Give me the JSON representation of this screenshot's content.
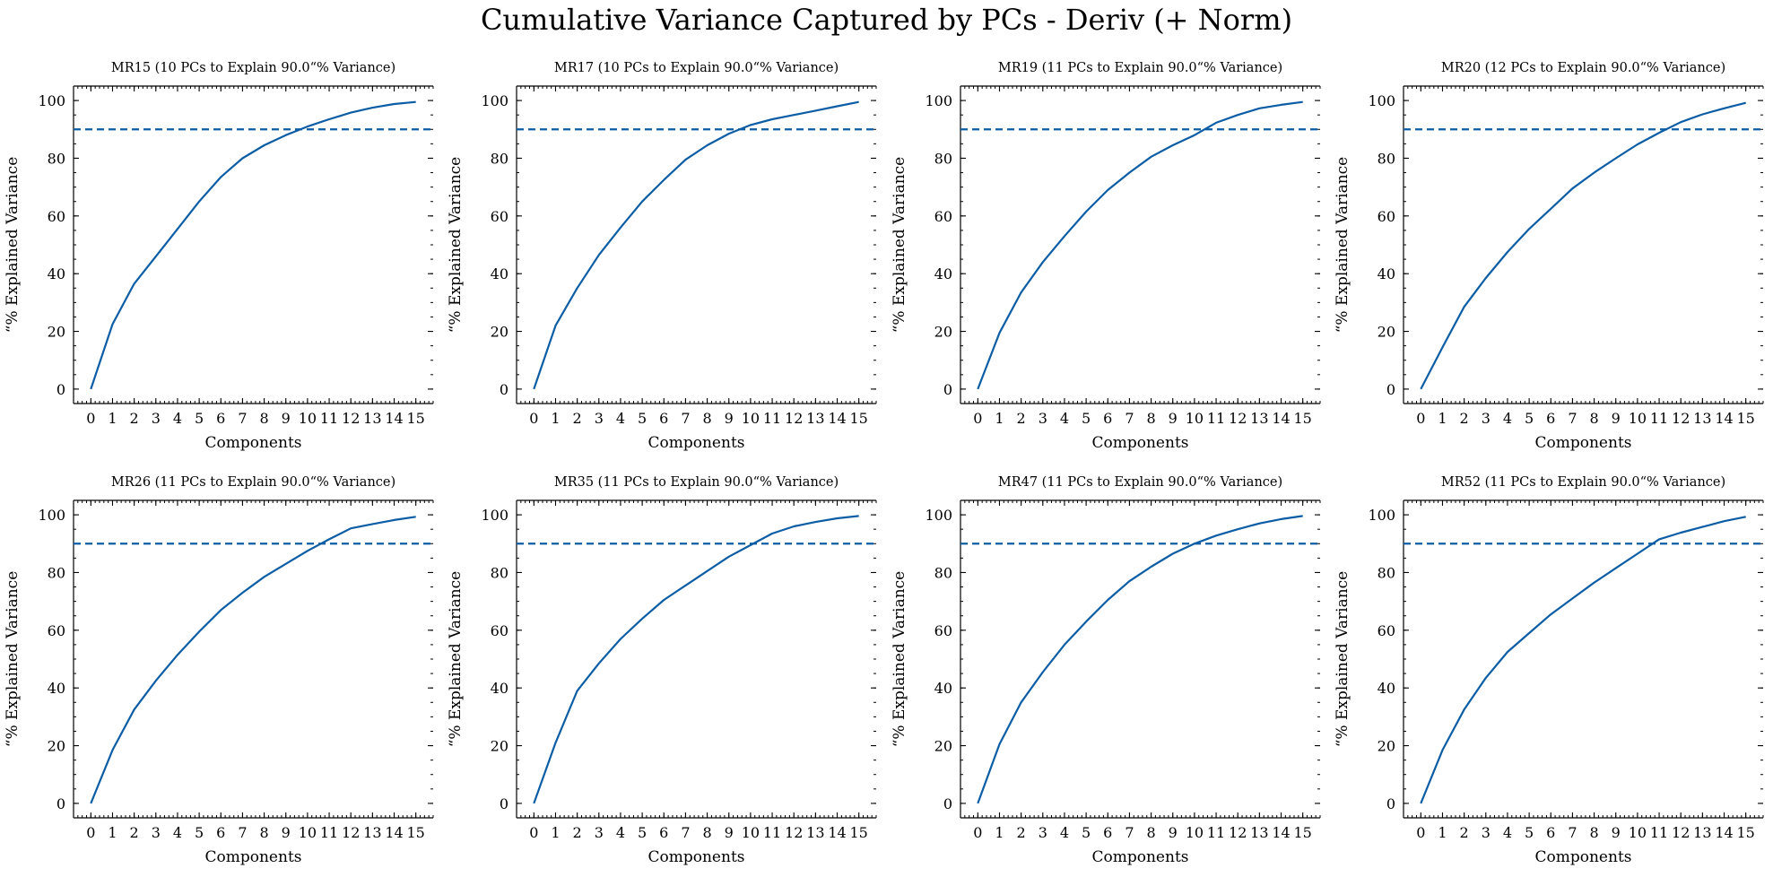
{
  "title": "Cumulative Variance Captured by PCs - Deriv (+ Norm)",
  "colors": {
    "line": "#0C5DA5",
    "threshold": "#0C5DA5",
    "axis": "#000000"
  },
  "chart_data": [
    {
      "type": "line",
      "title": "MR15 (10 PCs to Explain 90.0“% Variance)",
      "xlabel": "Components",
      "ylabel": "“% Explained Variance",
      "x": [
        0,
        1,
        2,
        3,
        4,
        5,
        6,
        7,
        8,
        9,
        10,
        11,
        12,
        13,
        14,
        15
      ],
      "values": [
        0,
        22.5,
        36.5,
        46,
        55.5,
        65,
        73.5,
        80,
        84.5,
        88,
        91,
        93.5,
        95.8,
        97.5,
        98.8,
        99.5
      ],
      "threshold": 90,
      "xlim": [
        -0.8,
        15.8
      ],
      "ylim": [
        -5,
        105
      ],
      "xticks": [
        0,
        1,
        2,
        3,
        4,
        5,
        6,
        7,
        8,
        9,
        10,
        11,
        12,
        13,
        14,
        15
      ],
      "yticks": [
        0,
        20,
        40,
        60,
        80,
        100
      ],
      "grid": false
    },
    {
      "type": "line",
      "title": "MR17 (10 PCs to Explain 90.0“% Variance)",
      "xlabel": "Components",
      "ylabel": "“% Explained Variance",
      "x": [
        0,
        1,
        2,
        3,
        4,
        5,
        6,
        7,
        8,
        9,
        10,
        11,
        12,
        13,
        14,
        15
      ],
      "values": [
        0,
        22,
        35,
        46.5,
        56,
        65,
        72.5,
        79.5,
        84.5,
        88.5,
        91.5,
        93.5,
        95,
        96.5,
        98,
        99.5
      ],
      "threshold": 90,
      "xlim": [
        -0.8,
        15.8
      ],
      "ylim": [
        -5,
        105
      ],
      "xticks": [
        0,
        1,
        2,
        3,
        4,
        5,
        6,
        7,
        8,
        9,
        10,
        11,
        12,
        13,
        14,
        15
      ],
      "yticks": [
        0,
        20,
        40,
        60,
        80,
        100
      ],
      "grid": false
    },
    {
      "type": "line",
      "title": "MR19 (11 PCs to Explain 90.0“% Variance)",
      "xlabel": "Components",
      "ylabel": "“% Explained Variance",
      "x": [
        0,
        1,
        2,
        3,
        4,
        5,
        6,
        7,
        8,
        9,
        10,
        11,
        12,
        13,
        14,
        15
      ],
      "values": [
        0,
        19.5,
        33.5,
        44,
        53,
        61.5,
        69,
        75,
        80.5,
        84.5,
        88,
        92.3,
        95,
        97.3,
        98.5,
        99.5
      ],
      "threshold": 90,
      "xlim": [
        -0.8,
        15.8
      ],
      "ylim": [
        -5,
        105
      ],
      "xticks": [
        0,
        1,
        2,
        3,
        4,
        5,
        6,
        7,
        8,
        9,
        10,
        11,
        12,
        13,
        14,
        15
      ],
      "yticks": [
        0,
        20,
        40,
        60,
        80,
        100
      ],
      "grid": false
    },
    {
      "type": "line",
      "title": "MR20 (12 PCs to Explain 90.0“% Variance)",
      "xlabel": "Components",
      "ylabel": "“% Explained Variance",
      "x": [
        0,
        1,
        2,
        3,
        4,
        5,
        6,
        7,
        8,
        9,
        10,
        11,
        12,
        13,
        14,
        15
      ],
      "values": [
        0,
        14.5,
        28.5,
        38.5,
        47.5,
        55.5,
        62.5,
        69.5,
        75,
        80,
        84.8,
        88.8,
        92.5,
        95.2,
        97.3,
        99.2
      ],
      "threshold": 90,
      "xlim": [
        -0.8,
        15.8
      ],
      "ylim": [
        -5,
        105
      ],
      "xticks": [
        0,
        1,
        2,
        3,
        4,
        5,
        6,
        7,
        8,
        9,
        10,
        11,
        12,
        13,
        14,
        15
      ],
      "yticks": [
        0,
        20,
        40,
        60,
        80,
        100
      ],
      "grid": false
    },
    {
      "type": "line",
      "title": "MR26 (11 PCs to Explain 90.0“% Variance)",
      "xlabel": "Components",
      "ylabel": "“% Explained Variance",
      "x": [
        0,
        1,
        2,
        3,
        4,
        5,
        6,
        7,
        8,
        9,
        10,
        11,
        12,
        13,
        14,
        15
      ],
      "values": [
        0,
        18.5,
        32.5,
        42.5,
        51.5,
        59.5,
        67,
        73,
        78.5,
        83,
        87.5,
        91.5,
        95.3,
        96.8,
        98.2,
        99.3
      ],
      "threshold": 90,
      "xlim": [
        -0.8,
        15.8
      ],
      "ylim": [
        -5,
        105
      ],
      "xticks": [
        0,
        1,
        2,
        3,
        4,
        5,
        6,
        7,
        8,
        9,
        10,
        11,
        12,
        13,
        14,
        15
      ],
      "yticks": [
        0,
        20,
        40,
        60,
        80,
        100
      ],
      "grid": false
    },
    {
      "type": "line",
      "title": "MR35 (11 PCs to Explain 90.0“% Variance)",
      "xlabel": "Components",
      "ylabel": "“% Explained Variance",
      "x": [
        0,
        1,
        2,
        3,
        4,
        5,
        6,
        7,
        8,
        9,
        10,
        11,
        12,
        13,
        14,
        15
      ],
      "values": [
        0,
        21,
        39,
        48.5,
        57,
        64,
        70.5,
        75.5,
        80.5,
        85.5,
        89.5,
        93.5,
        96,
        97.5,
        98.8,
        99.6
      ],
      "threshold": 90,
      "xlim": [
        -0.8,
        15.8
      ],
      "ylim": [
        -5,
        105
      ],
      "xticks": [
        0,
        1,
        2,
        3,
        4,
        5,
        6,
        7,
        8,
        9,
        10,
        11,
        12,
        13,
        14,
        15
      ],
      "yticks": [
        0,
        20,
        40,
        60,
        80,
        100
      ],
      "grid": false
    },
    {
      "type": "line",
      "title": "MR47 (11 PCs to Explain 90.0“% Variance)",
      "xlabel": "Components",
      "ylabel": "“% Explained Variance",
      "x": [
        0,
        1,
        2,
        3,
        4,
        5,
        6,
        7,
        8,
        9,
        10,
        11,
        12,
        13,
        14,
        15
      ],
      "values": [
        0,
        20.5,
        35,
        45.5,
        55,
        63,
        70.5,
        77,
        82,
        86.5,
        90,
        92.8,
        95,
        97,
        98.5,
        99.6
      ],
      "threshold": 90,
      "xlim": [
        -0.8,
        15.8
      ],
      "ylim": [
        -5,
        105
      ],
      "xticks": [
        0,
        1,
        2,
        3,
        4,
        5,
        6,
        7,
        8,
        9,
        10,
        11,
        12,
        13,
        14,
        15
      ],
      "yticks": [
        0,
        20,
        40,
        60,
        80,
        100
      ],
      "grid": false
    },
    {
      "type": "line",
      "title": "MR52 (11 PCs to Explain 90.0“% Variance)",
      "xlabel": "Components",
      "ylabel": "“% Explained Variance",
      "x": [
        0,
        1,
        2,
        3,
        4,
        5,
        6,
        7,
        8,
        9,
        10,
        11,
        12,
        13,
        14,
        15
      ],
      "values": [
        0,
        18.5,
        32.5,
        43.5,
        52.5,
        59,
        65.5,
        71,
        76.5,
        81.5,
        86.5,
        91.5,
        93.8,
        95.8,
        97.8,
        99.3
      ],
      "threshold": 90,
      "xlim": [
        -0.8,
        15.8
      ],
      "ylim": [
        -5,
        105
      ],
      "xticks": [
        0,
        1,
        2,
        3,
        4,
        5,
        6,
        7,
        8,
        9,
        10,
        11,
        12,
        13,
        14,
        15
      ],
      "yticks": [
        0,
        20,
        40,
        60,
        80,
        100
      ],
      "grid": false
    }
  ]
}
